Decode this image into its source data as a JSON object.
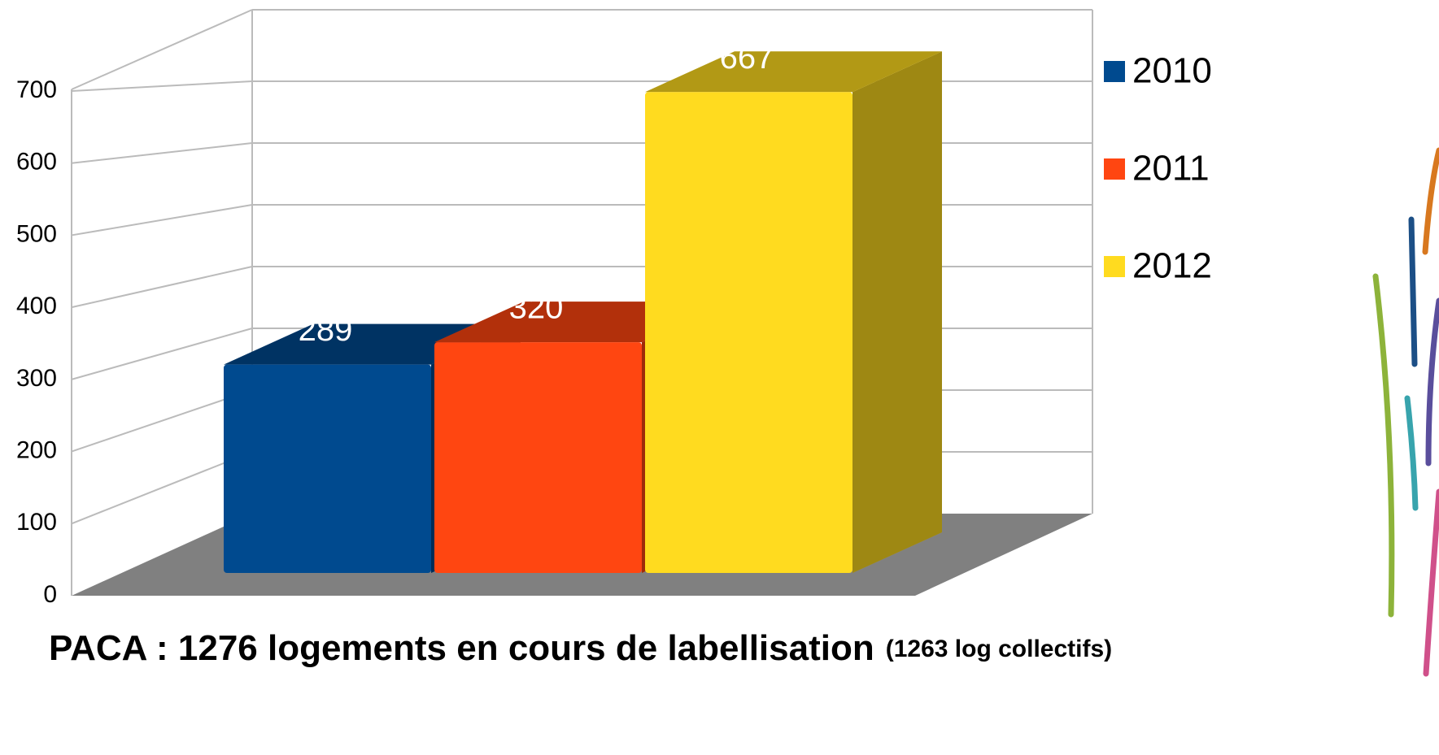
{
  "chart_data": {
    "type": "bar3d",
    "title": "PACA : 1276 logements en cours de labellisation",
    "subtitle": "(1263 log collectifs)",
    "series": [
      {
        "name": "2010",
        "color": "#004a8f",
        "values": [
          289
        ]
      },
      {
        "name": "2011",
        "color": "#ff4611",
        "values": [
          320
        ]
      },
      {
        "name": "2012",
        "color": "#ffdb1f",
        "values": [
          667
        ]
      }
    ],
    "ylim": [
      0,
      700
    ],
    "yticks": [
      0,
      100,
      200,
      300,
      400,
      500,
      600,
      700
    ],
    "grid": true,
    "legend": "right"
  }
}
